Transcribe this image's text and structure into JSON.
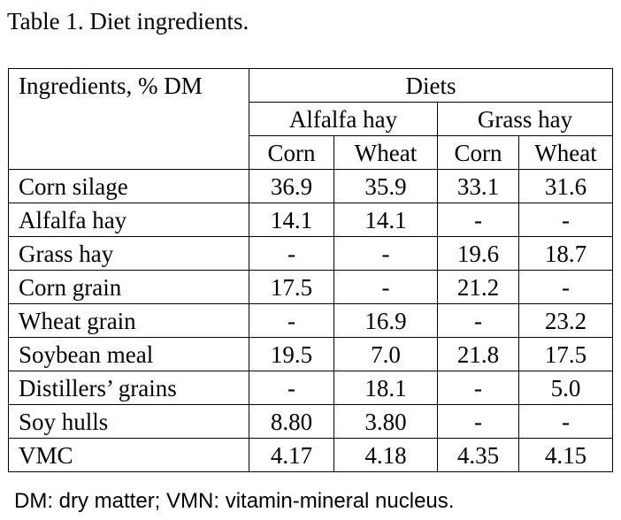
{
  "caption": "Table 1. Diet ingredients.",
  "header": {
    "ingredients_label": "Ingredients, % DM",
    "diets_label": "Diets",
    "groups": [
      "Alfalfa hay",
      "Grass hay"
    ],
    "subgroups": [
      "Corn",
      "Wheat",
      "Corn",
      "Wheat"
    ]
  },
  "rows": [
    {
      "label": "Corn silage",
      "values": [
        "36.9",
        "35.9",
        "33.1",
        "31.6"
      ]
    },
    {
      "label": "Alfalfa hay",
      "values": [
        "14.1",
        "14.1",
        "-",
        "-"
      ]
    },
    {
      "label": "Grass hay",
      "values": [
        "-",
        "-",
        "19.6",
        "18.7"
      ]
    },
    {
      "label": "Corn grain",
      "values": [
        "17.5",
        "-",
        "21.2",
        "-"
      ]
    },
    {
      "label": "Wheat grain",
      "values": [
        "-",
        "16.9",
        "-",
        "23.2"
      ]
    },
    {
      "label": "Soybean meal",
      "values": [
        "19.5",
        "7.0",
        "21.8",
        "17.5"
      ]
    },
    {
      "label": "Distillers’ grains",
      "values": [
        "-",
        "18.1",
        "-",
        "5.0"
      ]
    },
    {
      "label": "Soy hulls",
      "values": [
        "8.80",
        "3.80",
        "-",
        "-"
      ]
    },
    {
      "label": "VMC",
      "values": [
        "4.17",
        "4.18",
        "4.35",
        "4.15"
      ]
    }
  ],
  "footnote": "DM: dry matter; VMN: vitamin-mineral nucleus."
}
